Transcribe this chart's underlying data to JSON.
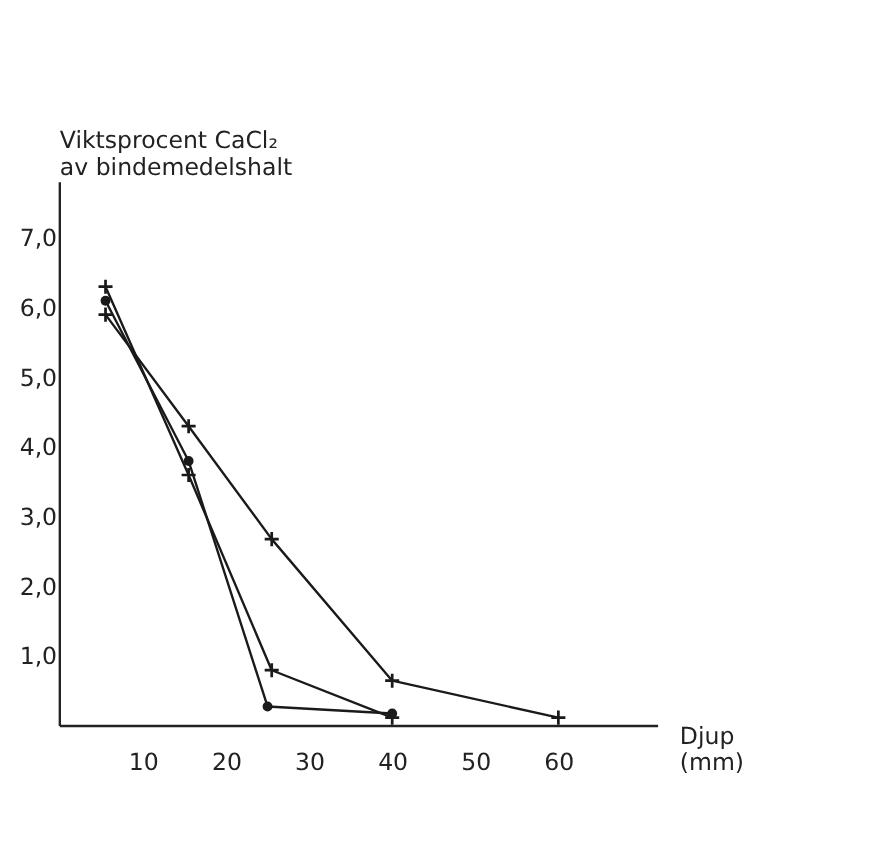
{
  "chart_data": {
    "type": "line",
    "ylabel": "Viktsprocent CaCl₂\nav bindemedelshalt",
    "xlabel": "Djup\n(mm)",
    "xlim": [
      0,
      72
    ],
    "xticks": [
      10,
      20,
      30,
      40,
      50,
      60
    ],
    "ylim": [
      0,
      7.8
    ],
    "yticks": [
      {
        "value": 1,
        "label": "1,0"
      },
      {
        "value": 2,
        "label": "2,0"
      },
      {
        "value": 3,
        "label": "3,0"
      },
      {
        "value": 4,
        "label": "4,0"
      },
      {
        "value": 5,
        "label": "5,0"
      },
      {
        "value": 6,
        "label": "6,0"
      },
      {
        "value": 7,
        "label": "7,0"
      }
    ],
    "grid": false,
    "line_style": "solid",
    "series": [
      {
        "color": "#1a1a1a",
        "marker": "circle",
        "x": [
          5.5,
          15.5,
          25,
          40
        ],
        "values": [
          6.1,
          3.8,
          0.28,
          0.18
        ]
      },
      {
        "color": "#1a1a1a",
        "marker": "cross",
        "x": [
          5.5,
          15.5,
          25.5,
          40
        ],
        "values": [
          6.3,
          3.6,
          0.8,
          0.12
        ]
      },
      {
        "color": "#1a1a1a",
        "marker": "cross",
        "x": [
          5.5,
          15.5,
          25.5,
          40,
          60
        ],
        "values": [
          5.9,
          4.3,
          2.68,
          0.65,
          0.12
        ]
      }
    ]
  }
}
